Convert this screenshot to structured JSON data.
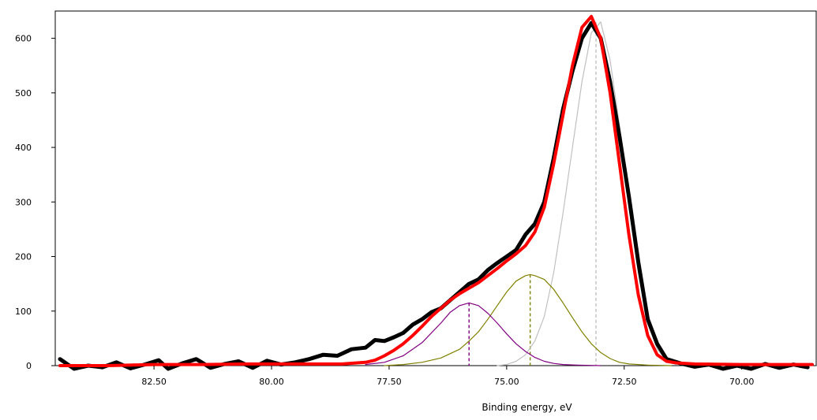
{
  "chart_data": {
    "type": "line",
    "title": "",
    "xlabel": "Binding energy, eV",
    "ylabel": "",
    "xlim": [
      84.6,
      68.4
    ],
    "ylim": [
      0,
      650
    ],
    "x_reversed": true,
    "grid": false,
    "legend": "none",
    "x_ticks": [
      82.5,
      80.0,
      77.5,
      75.0,
      72.5,
      70.0
    ],
    "x_tick_labels": [
      "82.50",
      "80.00",
      "77.50",
      "75.00",
      "72.50",
      "70.00"
    ],
    "y_ticks": [
      0,
      100,
      200,
      300,
      400,
      500,
      600
    ],
    "y_tick_labels": [
      "0",
      "100",
      "200",
      "300",
      "400",
      "500",
      "600"
    ],
    "series": [
      {
        "role": "measured",
        "color": "#000000",
        "x": [
          84.5,
          84.2,
          83.9,
          83.6,
          83.3,
          83.0,
          82.7,
          82.4,
          82.2,
          81.9,
          81.6,
          81.3,
          81.0,
          80.7,
          80.4,
          80.1,
          79.8,
          79.5,
          79.2,
          78.9,
          78.6,
          78.3,
          78.0,
          77.8,
          77.6,
          77.4,
          77.2,
          77.0,
          76.8,
          76.6,
          76.4,
          76.2,
          76.0,
          75.8,
          75.6,
          75.4,
          75.2,
          75.0,
          74.8,
          74.6,
          74.4,
          74.2,
          74.0,
          73.8,
          73.6,
          73.4,
          73.2,
          73.0,
          72.8,
          72.6,
          72.4,
          72.2,
          72.0,
          71.8,
          71.6,
          71.3,
          71.0,
          70.7,
          70.4,
          70.1,
          69.8,
          69.5,
          69.2,
          68.9,
          68.6
        ],
        "y": [
          12,
          -8,
          0,
          -3,
          6,
          -5,
          2,
          10,
          -6,
          4,
          12,
          -4,
          3,
          8,
          -4,
          9,
          2,
          6,
          12,
          20,
          18,
          30,
          33,
          47,
          45,
          52,
          60,
          75,
          85,
          98,
          105,
          120,
          135,
          150,
          158,
          175,
          188,
          200,
          212,
          240,
          260,
          300,
          380,
          470,
          540,
          600,
          628,
          600,
          520,
          420,
          310,
          190,
          85,
          40,
          12,
          4,
          -2,
          2,
          -8,
          0,
          -6,
          3,
          -4,
          2,
          -3
        ]
      },
      {
        "role": "fit envelope",
        "color": "#ff0000",
        "x": [
          84.5,
          83.5,
          82.5,
          81.5,
          80.5,
          79.5,
          78.5,
          78.0,
          77.8,
          77.6,
          77.4,
          77.2,
          77.0,
          76.8,
          76.6,
          76.4,
          76.2,
          76.0,
          75.8,
          75.6,
          75.4,
          75.2,
          75.0,
          74.8,
          74.6,
          74.4,
          74.2,
          74.0,
          73.8,
          73.6,
          73.4,
          73.2,
          73.0,
          72.8,
          72.6,
          72.4,
          72.2,
          72.0,
          71.8,
          71.6,
          71.4,
          71.0,
          70.0,
          69.0,
          68.5
        ],
        "y": [
          0,
          0,
          2,
          2,
          3,
          3,
          3,
          6,
          10,
          18,
          28,
          40,
          55,
          72,
          90,
          105,
          120,
          132,
          142,
          152,
          165,
          178,
          192,
          205,
          220,
          245,
          290,
          370,
          460,
          550,
          620,
          640,
          600,
          500,
          370,
          240,
          130,
          55,
          20,
          8,
          5,
          3,
          2,
          2,
          2
        ]
      },
      {
        "role": "component 1",
        "color": "#800080",
        "x": [
          78.0,
          77.6,
          77.2,
          76.8,
          76.4,
          76.2,
          76.0,
          75.8,
          75.6,
          75.4,
          75.2,
          75.0,
          74.8,
          74.6,
          74.4,
          74.2,
          74.0,
          73.8,
          73.5,
          73.0
        ],
        "y": [
          2,
          6,
          18,
          42,
          78,
          98,
          110,
          115,
          110,
          96,
          78,
          58,
          40,
          26,
          15,
          8,
          4,
          2,
          1,
          0
        ],
        "center": 75.8
      },
      {
        "role": "component 2",
        "color": "#808000",
        "x": [
          77.6,
          77.2,
          76.8,
          76.4,
          76.0,
          75.8,
          75.6,
          75.4,
          75.2,
          75.0,
          74.8,
          74.6,
          74.5,
          74.4,
          74.2,
          74.0,
          73.8,
          73.6,
          73.4,
          73.2,
          73.0,
          72.8,
          72.6,
          72.4,
          72.0,
          71.5
        ],
        "y": [
          0,
          2,
          6,
          14,
          30,
          45,
          62,
          85,
          110,
          135,
          155,
          165,
          167,
          165,
          158,
          140,
          115,
          88,
          62,
          40,
          24,
          13,
          6,
          3,
          1,
          0
        ],
        "center": 74.5
      },
      {
        "role": "component 3",
        "color": "#c0c0c0",
        "x": [
          75.2,
          75.0,
          74.8,
          74.6,
          74.4,
          74.2,
          74.0,
          73.8,
          73.6,
          73.4,
          73.2,
          73.0,
          72.8,
          72.6,
          72.4,
          72.2,
          72.0,
          71.8,
          71.6,
          71.4
        ],
        "y": [
          0,
          2,
          8,
          20,
          45,
          90,
          170,
          280,
          400,
          520,
          610,
          630,
          560,
          440,
          300,
          170,
          80,
          30,
          10,
          2
        ],
        "center": 73.1
      }
    ]
  }
}
